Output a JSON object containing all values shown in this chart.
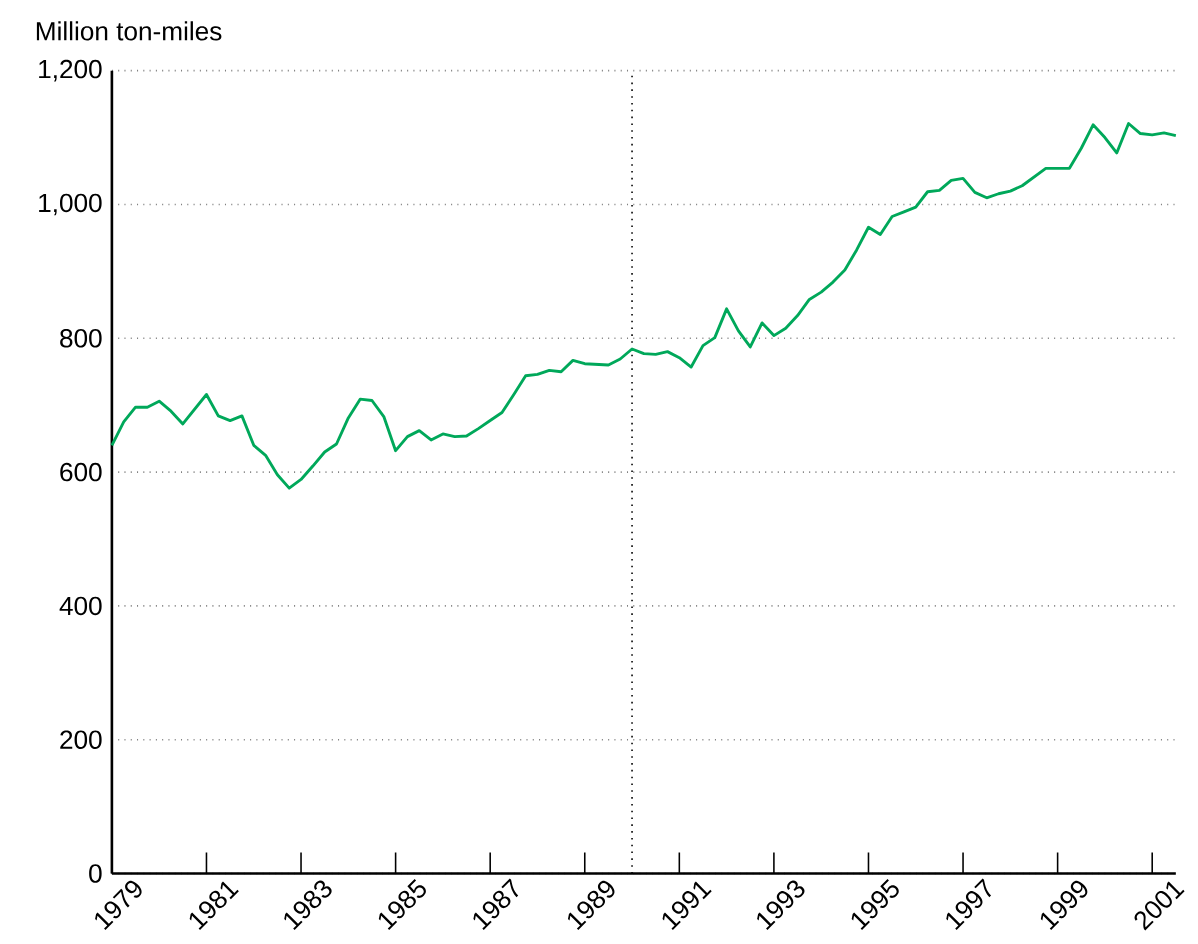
{
  "chart_data": {
    "type": "line",
    "ylabel": "Million ton-miles",
    "x": [
      1979,
      1979.25,
      1979.5,
      1979.75,
      1980,
      1980.25,
      1980.5,
      1980.75,
      1981,
      1981.25,
      1981.5,
      1981.75,
      1982,
      1982.25,
      1982.5,
      1982.75,
      1983,
      1983.25,
      1983.5,
      1983.75,
      1984,
      1984.25,
      1984.5,
      1984.75,
      1985,
      1985.25,
      1985.5,
      1985.75,
      1986,
      1986.25,
      1986.5,
      1986.75,
      1987,
      1987.25,
      1987.5,
      1987.75,
      1988,
      1988.25,
      1988.5,
      1988.75,
      1989,
      1989.25,
      1989.5,
      1989.75,
      1990,
      1990.25,
      1990.5,
      1990.75,
      1991,
      1991.25,
      1991.5,
      1991.75,
      1992,
      1992.25,
      1992.5,
      1992.75,
      1993,
      1993.25,
      1993.5,
      1993.75,
      1994,
      1994.25,
      1994.5,
      1994.75,
      1995,
      1995.25,
      1995.5,
      1995.75,
      1996,
      1996.25,
      1996.5,
      1996.75,
      1997,
      1997.25,
      1997.5,
      1997.75,
      1998,
      1998.25,
      1998.5,
      1998.75,
      1999,
      1999.25,
      1999.5,
      1999.75,
      2000,
      2000.25,
      2000.5,
      2000.75,
      2001,
      2001.25,
      2001.5
    ],
    "series": [
      {
        "color": "#00a85a",
        "values": [
          640,
          675,
          697,
          697,
          706,
          691,
          672,
          694,
          716,
          684,
          677,
          684,
          640,
          625,
          596,
          576,
          589,
          609,
          630,
          642,
          681,
          709,
          707,
          683,
          632,
          653,
          662,
          648,
          657,
          653,
          654,
          665,
          677,
          689,
          716,
          744,
          746,
          752,
          750,
          767,
          762,
          761,
          760,
          769,
          784,
          777,
          776,
          780,
          771,
          757,
          789,
          801,
          844,
          811,
          787,
          823,
          804,
          815,
          834,
          858,
          869,
          884,
          902,
          932,
          966,
          955,
          982,
          989,
          996,
          1019,
          1021,
          1036,
          1039,
          1018,
          1010,
          1016,
          1020,
          1028,
          1041,
          1054,
          1054,
          1054,
          1084,
          1119,
          1100,
          1077,
          1121,
          1106,
          1104,
          1107,
          1103
        ]
      }
    ],
    "xlim": [
      1979,
      2001.5
    ],
    "ylim": [
      0,
      1200
    ],
    "xticks": [
      1979,
      1981,
      1983,
      1985,
      1987,
      1989,
      1991,
      1993,
      1995,
      1997,
      1999,
      2001
    ],
    "yticks": [
      0,
      200,
      400,
      600,
      800,
      {
        "value": 1000,
        "label": "1,000"
      },
      {
        "value": 1200,
        "label": "1,200"
      }
    ],
    "grid": "y",
    "marker": "none",
    "line_style": "solid",
    "ref_lines": [
      {
        "axis": "x",
        "value": 1990,
        "line_style": "dotted"
      }
    ]
  }
}
